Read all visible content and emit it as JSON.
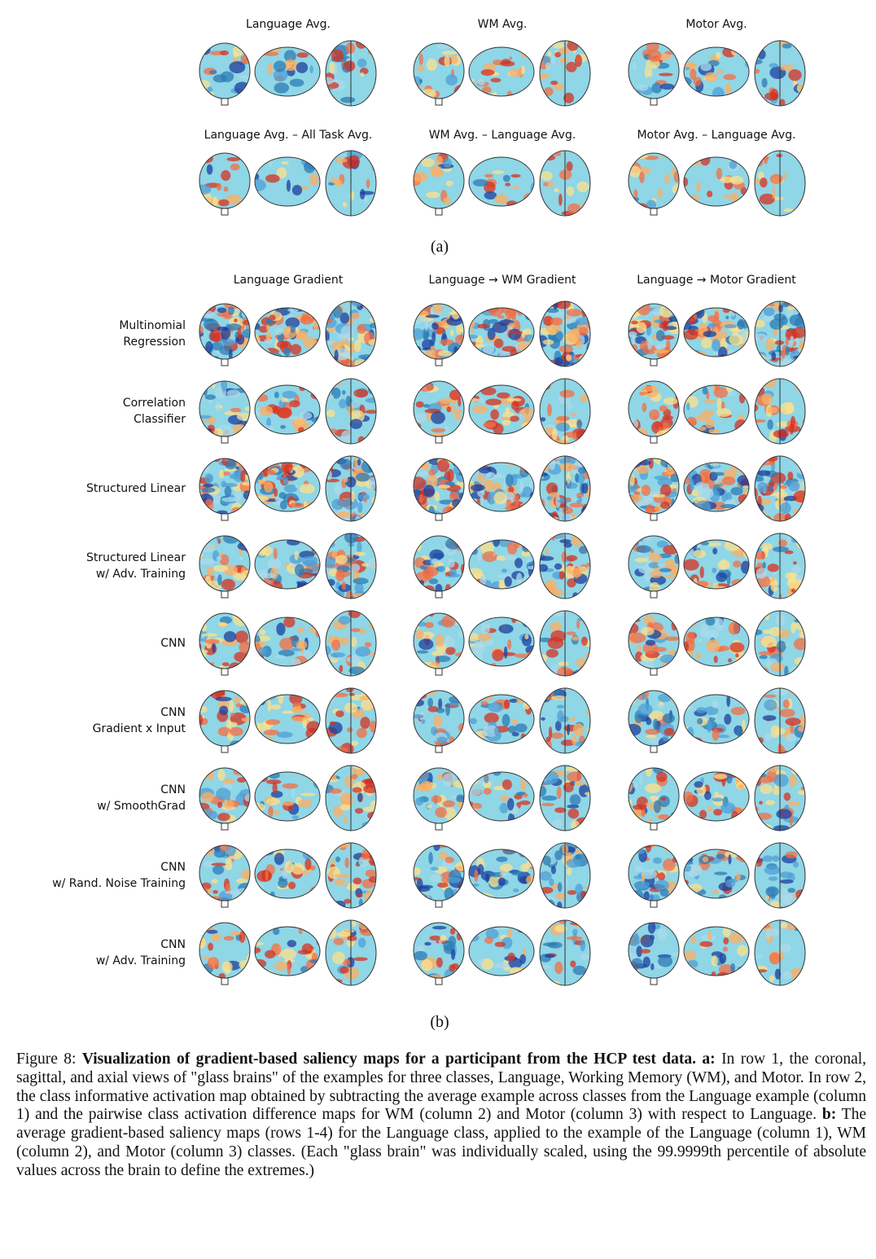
{
  "panel_a": {
    "row1_titles": [
      "Language Avg.",
      "WM Avg.",
      "Motor Avg."
    ],
    "row2_titles": [
      "Language Avg. – All Task Avg.",
      "WM Avg. – Language Avg.",
      "Motor Avg. – Language Avg."
    ],
    "label": "(a)"
  },
  "panel_b": {
    "column_titles": [
      "Language Gradient",
      "Language → WM Gradient",
      "Language → Motor Gradient"
    ],
    "row_labels": [
      [
        "Multinomial",
        "Regression"
      ],
      [
        "Correlation",
        "Classifier"
      ],
      [
        "Structured Linear"
      ],
      [
        "Structured Linear",
        "w/ Adv. Training"
      ],
      [
        "CNN"
      ],
      [
        "CNN",
        "Gradient x Input"
      ],
      [
        "CNN",
        "w/ SmoothGrad"
      ],
      [
        "CNN",
        "w/ Rand. Noise Training"
      ],
      [
        "CNN",
        "w/ Adv. Training"
      ]
    ],
    "label": "(b)"
  },
  "caption": {
    "label": "Figure 8:",
    "title": "Visualization of gradient-based saliency maps for a participant from the HCP test data.",
    "parts": [
      {
        "label": "a:",
        "text": "In row 1, the coronal, sagittal, and axial views of \"glass brains\" of the examples for three classes, Language, Working Memory (WM), and Motor. In row 2, the class informative activation map obtained by subtracting the average example across classes from the Language example (column 1) and the pairwise class activation difference maps for WM (column 2) and Motor (column 3) with respect to Language."
      },
      {
        "label": "b:",
        "text": "The average gradient-based saliency maps (rows 1-4) for the Language class, applied to the example of the Language (column 1), WM (column 2), and Motor (column 3) classes. (Each \"glass brain\" was individually scaled, using the 99.9999th percentile of absolute values across the brain to define the extremes.)"
      }
    ]
  }
}
